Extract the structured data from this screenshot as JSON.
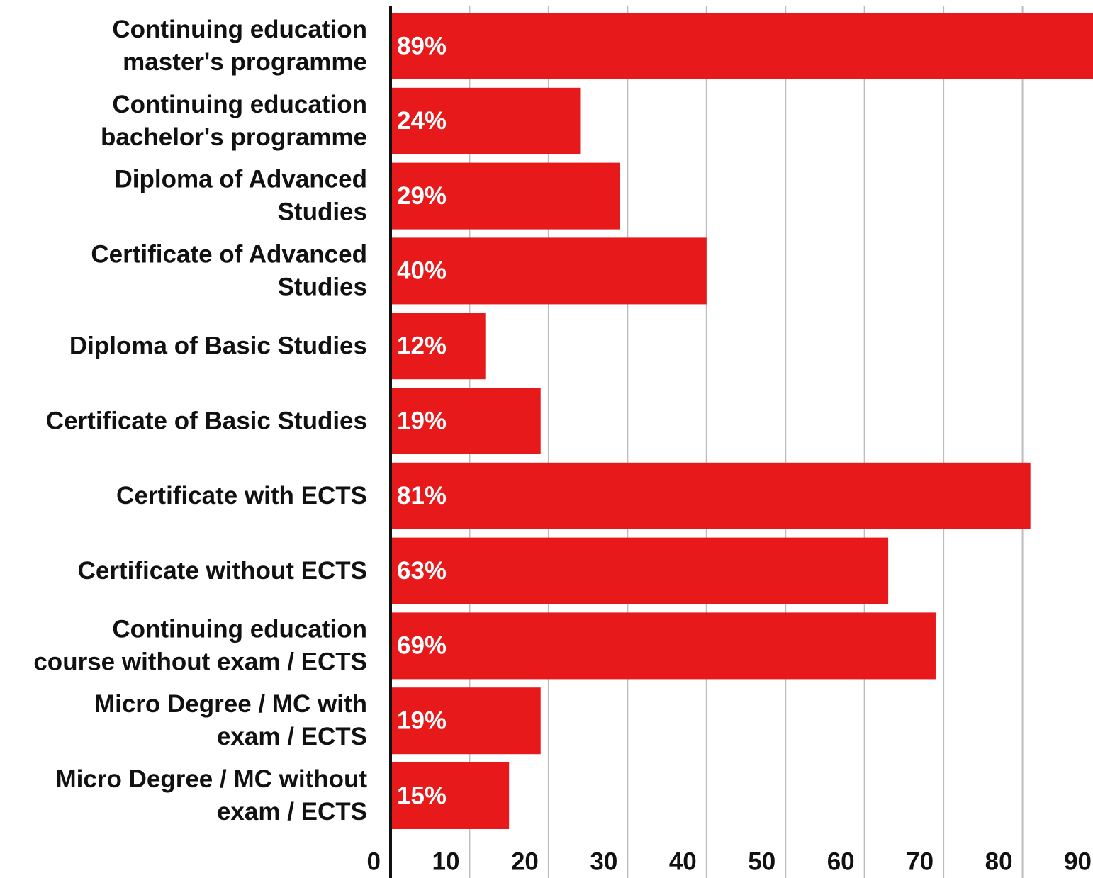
{
  "chart_data": {
    "type": "bar",
    "orientation": "horizontal",
    "categories": [
      "Continuing education\nmaster's programme",
      "Continuing education\nbachelor's programme",
      "Diploma of Advanced\nStudies",
      "Certificate of Advanced\nStudies",
      "Diploma of Basic Studies",
      "Certificate of Basic Studies",
      "Certificate with ECTS",
      "Certificate without ECTS",
      "Continuing education\ncourse without exam / ECTS",
      "Micro Degree / MC with\nexam / ECTS",
      "Micro Degree / MC without\nexam / ECTS"
    ],
    "values": [
      89,
      24,
      29,
      40,
      12,
      19,
      81,
      63,
      69,
      19,
      15
    ],
    "value_labels": [
      "89%",
      "24%",
      "29%",
      "40%",
      "12%",
      "19%",
      "81%",
      "63%",
      "69%",
      "19%",
      "15%"
    ],
    "color": "#e8191a",
    "xlim": [
      0,
      90
    ],
    "xticks": [
      0,
      10,
      20,
      30,
      40,
      50,
      60,
      70,
      80,
      90
    ],
    "grid": true
  }
}
